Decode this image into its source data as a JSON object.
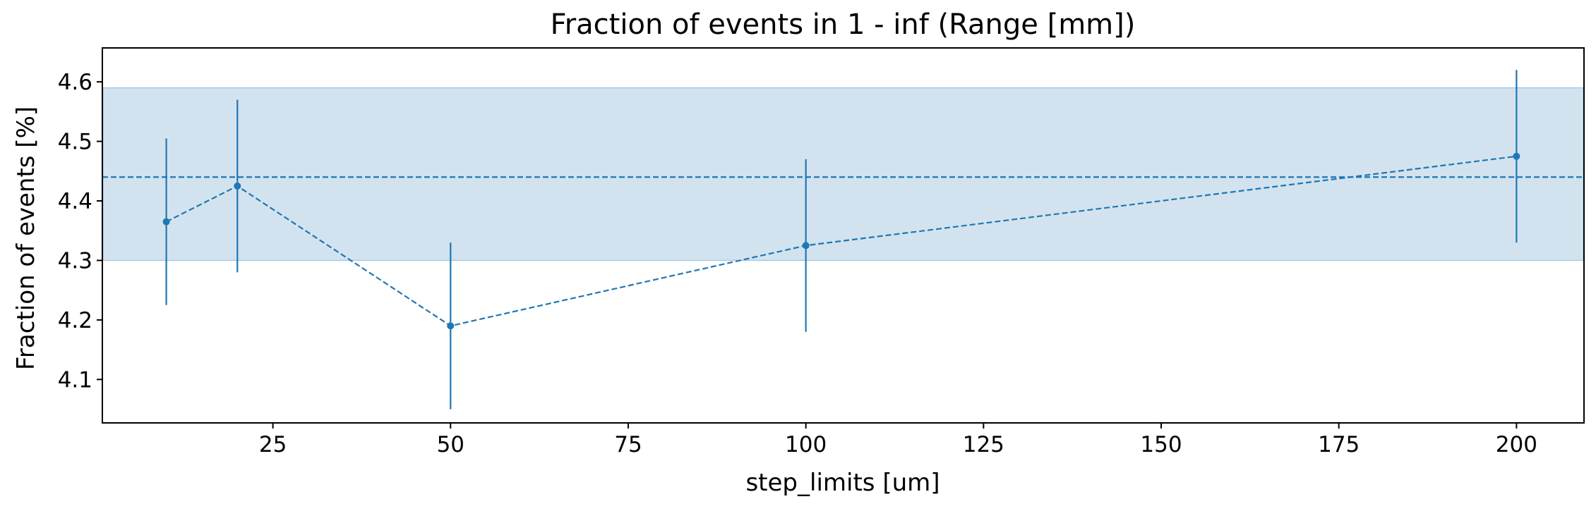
{
  "chart_data": {
    "type": "scatter",
    "title": "Fraction of events in 1 - inf (Range [mm])",
    "xlabel": "step_limits [um]",
    "ylabel": "Fraction of events [%]",
    "xlim": [
      1,
      209.5
    ],
    "ylim": [
      4.027,
      4.657
    ],
    "xticks": [
      25,
      50,
      75,
      100,
      125,
      150,
      175,
      200
    ],
    "yticks": [
      4.1,
      4.2,
      4.3,
      4.4,
      4.5,
      4.6
    ],
    "grid": false,
    "series": [
      {
        "x": [
          10,
          20,
          50,
          100,
          200
        ],
        "y": [
          4.365,
          4.425,
          4.19,
          4.325,
          4.475
        ],
        "yerr": [
          0.14,
          0.145,
          0.14,
          0.145,
          0.145
        ],
        "line_style": "dashed",
        "marker": "circle"
      }
    ],
    "reference_line": {
      "y": 4.44,
      "style": "dashed"
    },
    "band": {
      "ymin": 4.3,
      "ymax": 4.59
    },
    "colors": {
      "series": "#1f77b4",
      "band": "#d2e3ef",
      "band_edge": "#a9c9e2"
    }
  }
}
